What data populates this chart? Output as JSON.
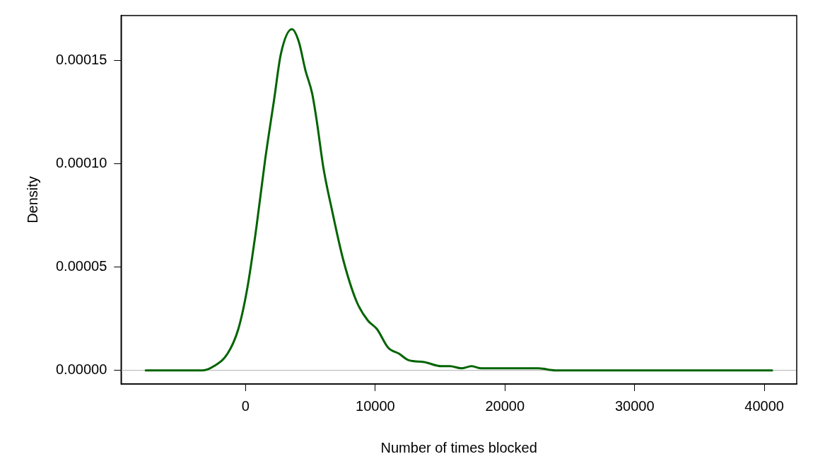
{
  "chart_data": {
    "type": "line",
    "xlabel": "Number of times blocked",
    "ylabel": "Density",
    "x": [
      -7700,
      -3300,
      -2450,
      -1400,
      -560,
      140,
      830,
      1510,
      2200,
      2720,
      3580,
      4100,
      4620,
      5130,
      5480,
      6000,
      6680,
      7550,
      8580,
      9440,
      10130,
      10990,
      11850,
      12540,
      13780,
      15090,
      15760,
      16640,
      17420,
      18180,
      20360,
      22580,
      23880,
      30000,
      40600
    ],
    "series": [
      {
        "color": "#006400",
        "values": [
          0,
          0,
          2e-06,
          8e-06,
          2e-05,
          4e-05,
          6.9e-05,
          0.000102,
          0.000131,
          0.000153,
          0.000165,
          0.000159,
          0.000145,
          0.000134,
          0.000121,
          9.8e-05,
          7.7e-05,
          5.3e-05,
          3.3e-05,
          2.4e-05,
          2e-05,
          1.1e-05,
          8e-06,
          5e-06,
          4e-06,
          2e-06,
          2e-06,
          1e-06,
          2e-06,
          1e-06,
          1e-06,
          1e-06,
          0,
          0,
          0
        ]
      }
    ],
    "xlim": [
      -9600,
      42500
    ],
    "xticks": [
      0,
      10000,
      20000,
      30000,
      40000
    ],
    "ylim": [
      -6.6e-06,
      0.0001716
    ],
    "yticks": [
      {
        "value": 0,
        "label": "0.00000"
      },
      {
        "value": 5e-05,
        "label": "0.00005"
      },
      {
        "value": 0.0001,
        "label": "0.00010"
      },
      {
        "value": 0.00015,
        "label": "0.00015"
      }
    ],
    "ref_lines": [
      {
        "axis": "y",
        "value": 0,
        "color": "#bebebe"
      }
    ],
    "grid": false,
    "legend": false,
    "marker": "none",
    "line_style": "solid"
  }
}
